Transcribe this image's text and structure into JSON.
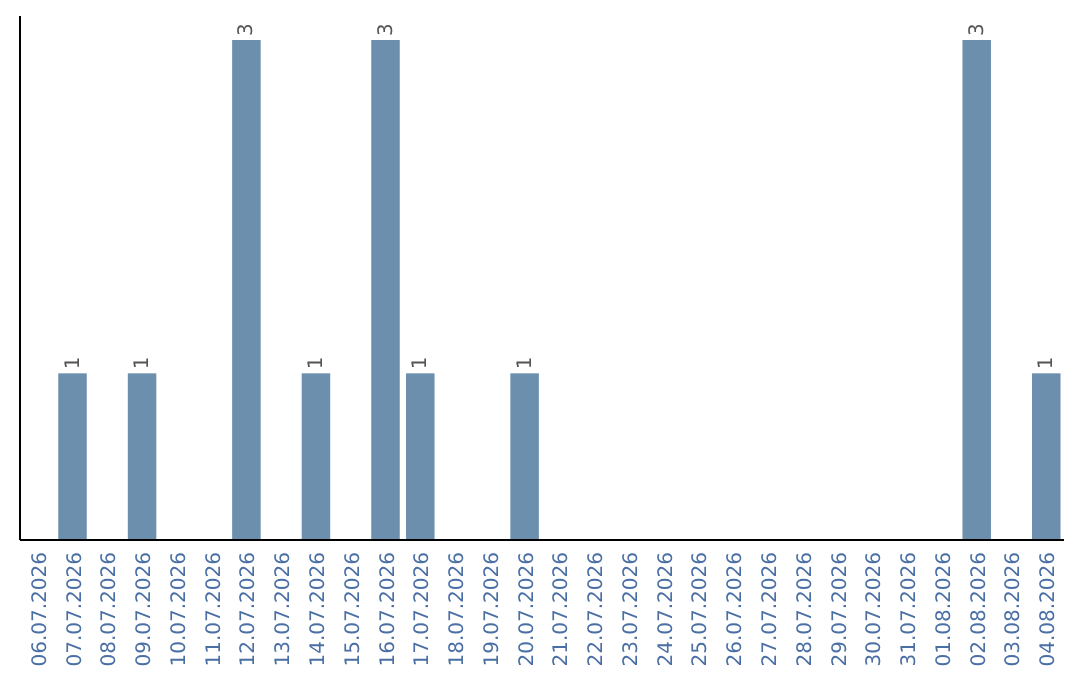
{
  "chart_data": {
    "type": "bar",
    "categories": [
      "06.07.2026",
      "07.07.2026",
      "08.07.2026",
      "09.07.2026",
      "10.07.2026",
      "11.07.2026",
      "12.07.2026",
      "13.07.2026",
      "14.07.2026",
      "15.07.2026",
      "16.07.2026",
      "17.07.2026",
      "18.07.2026",
      "19.07.2026",
      "20.07.2026",
      "21.07.2026",
      "22.07.2026",
      "23.07.2026",
      "24.07.2026",
      "25.07.2026",
      "26.07.2026",
      "27.07.2026",
      "28.07.2026",
      "29.07.2026",
      "30.07.2026",
      "31.07.2026",
      "01.08.2026",
      "02.08.2026",
      "03.08.2026",
      "04.08.2026"
    ],
    "values": [
      null,
      1,
      null,
      1,
      null,
      null,
      3,
      null,
      1,
      null,
      3,
      1,
      null,
      null,
      1,
      null,
      null,
      null,
      null,
      null,
      null,
      null,
      null,
      null,
      null,
      null,
      null,
      3,
      null,
      1
    ],
    "color": "#6d8fae",
    "data_labels": true
  }
}
